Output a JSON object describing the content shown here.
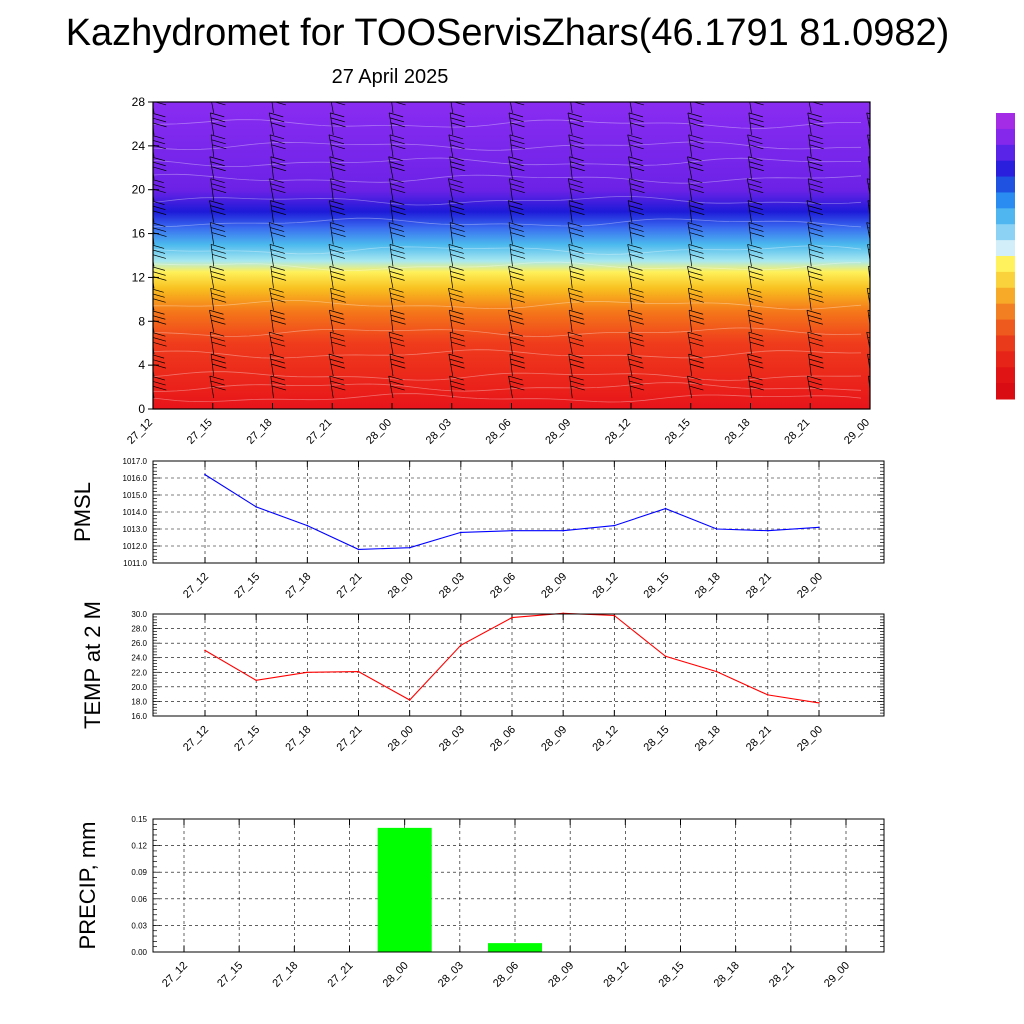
{
  "header": {
    "title": "Kazhydromet for TOOServisZhars(46.1791 81.0982)",
    "date": "27 April 2025"
  },
  "chart_data": [
    {
      "type": "heatmap",
      "name": "height-time cross-section",
      "xlabels": [
        "27_12",
        "27_15",
        "27_18",
        "27_21",
        "28_00",
        "28_03",
        "28_06",
        "28_09",
        "28_12",
        "28_15",
        "28_18",
        "28_21",
        "29_00"
      ],
      "yticks": [
        "0",
        "4",
        "8",
        "12",
        "16",
        "20",
        "24",
        "28"
      ],
      "ylim": [
        0,
        28
      ],
      "color_bands": [
        {
          "y": 0,
          "color": "#e8141a"
        },
        {
          "y": 6,
          "color": "#ef3c1c"
        },
        {
          "y": 9,
          "color": "#f57a1a"
        },
        {
          "y": 11,
          "color": "#f8c020"
        },
        {
          "y": 12.5,
          "color": "#fff15a"
        },
        {
          "y": 13.5,
          "color": "#a8e8f0"
        },
        {
          "y": 15,
          "color": "#4bb9ee"
        },
        {
          "y": 16.5,
          "color": "#3a6df0"
        },
        {
          "y": 18,
          "color": "#1d1ad8"
        },
        {
          "y": 20,
          "color": "#6c22e6"
        },
        {
          "y": 28,
          "color": "#8a2cf2"
        }
      ],
      "legend_colors": [
        "#a52ce6",
        "#8628ec",
        "#5a24e8",
        "#2a1fdc",
        "#1f52e0",
        "#2a8cf0",
        "#4fb6f0",
        "#8cd2f4",
        "#d2eef8",
        "#fff25c",
        "#fad23c",
        "#f6aa28",
        "#f28022",
        "#ee5a1e",
        "#ea3a1c",
        "#e62418",
        "#e01414",
        "#d80c12"
      ],
      "grid": false
    },
    {
      "type": "line",
      "ylabel": "PMSL",
      "xlabels": [
        "27_12",
        "27_15",
        "27_18",
        "27_21",
        "28_00",
        "28_03",
        "28_06",
        "28_09",
        "28_12",
        "28_15",
        "28_18",
        "28_21",
        "29_00"
      ],
      "yticks": [
        "1011.0",
        "1012.0",
        "1013.0",
        "1014.0",
        "1015.0",
        "1016.0",
        "1017.0"
      ],
      "ylim": [
        1011.0,
        1017.0
      ],
      "series": [
        {
          "values": [
            1016.2,
            1014.3,
            1013.2,
            1011.8,
            1011.9,
            1012.8,
            1012.9,
            1012.9,
            1013.2,
            1014.2,
            1013.0,
            1012.9,
            1013.1
          ],
          "color": "#0000ff"
        }
      ],
      "grid": true
    },
    {
      "type": "line",
      "ylabel": "TEMP at 2 M",
      "xlabels": [
        "27_12",
        "27_15",
        "27_18",
        "27_21",
        "28_00",
        "28_03",
        "28_06",
        "28_09",
        "28_12",
        "28_15",
        "28_18",
        "28_21",
        "29_00"
      ],
      "yticks": [
        "16.0",
        "18.0",
        "20.0",
        "22.0",
        "24.0",
        "26.0",
        "28.0",
        "30.0"
      ],
      "ylim": [
        16.0,
        30.0
      ],
      "series": [
        {
          "values": [
            25.0,
            20.9,
            22.0,
            22.1,
            18.2,
            25.7,
            29.5,
            30.1,
            29.8,
            24.2,
            22.1,
            18.9,
            17.8
          ],
          "color": "#ff0000"
        }
      ],
      "grid": true
    },
    {
      "type": "bar",
      "ylabel": "PRECIP, mm",
      "categories": [
        "27_12",
        "27_15",
        "27_18",
        "27_21",
        "28_00",
        "28_03",
        "28_06",
        "28_09",
        "28_12",
        "28_15",
        "28_18",
        "28_21",
        "29_00"
      ],
      "yticks": [
        "0.00",
        "0.03",
        "0.06",
        "0.09",
        "0.12",
        "0.15"
      ],
      "ylim": [
        0,
        0.15
      ],
      "series": [
        {
          "values": [
            0,
            0,
            0,
            0,
            0.14,
            0,
            0.01,
            0,
            0,
            0,
            0,
            0,
            0
          ],
          "color": "#00ff00"
        }
      ],
      "grid": true
    }
  ]
}
